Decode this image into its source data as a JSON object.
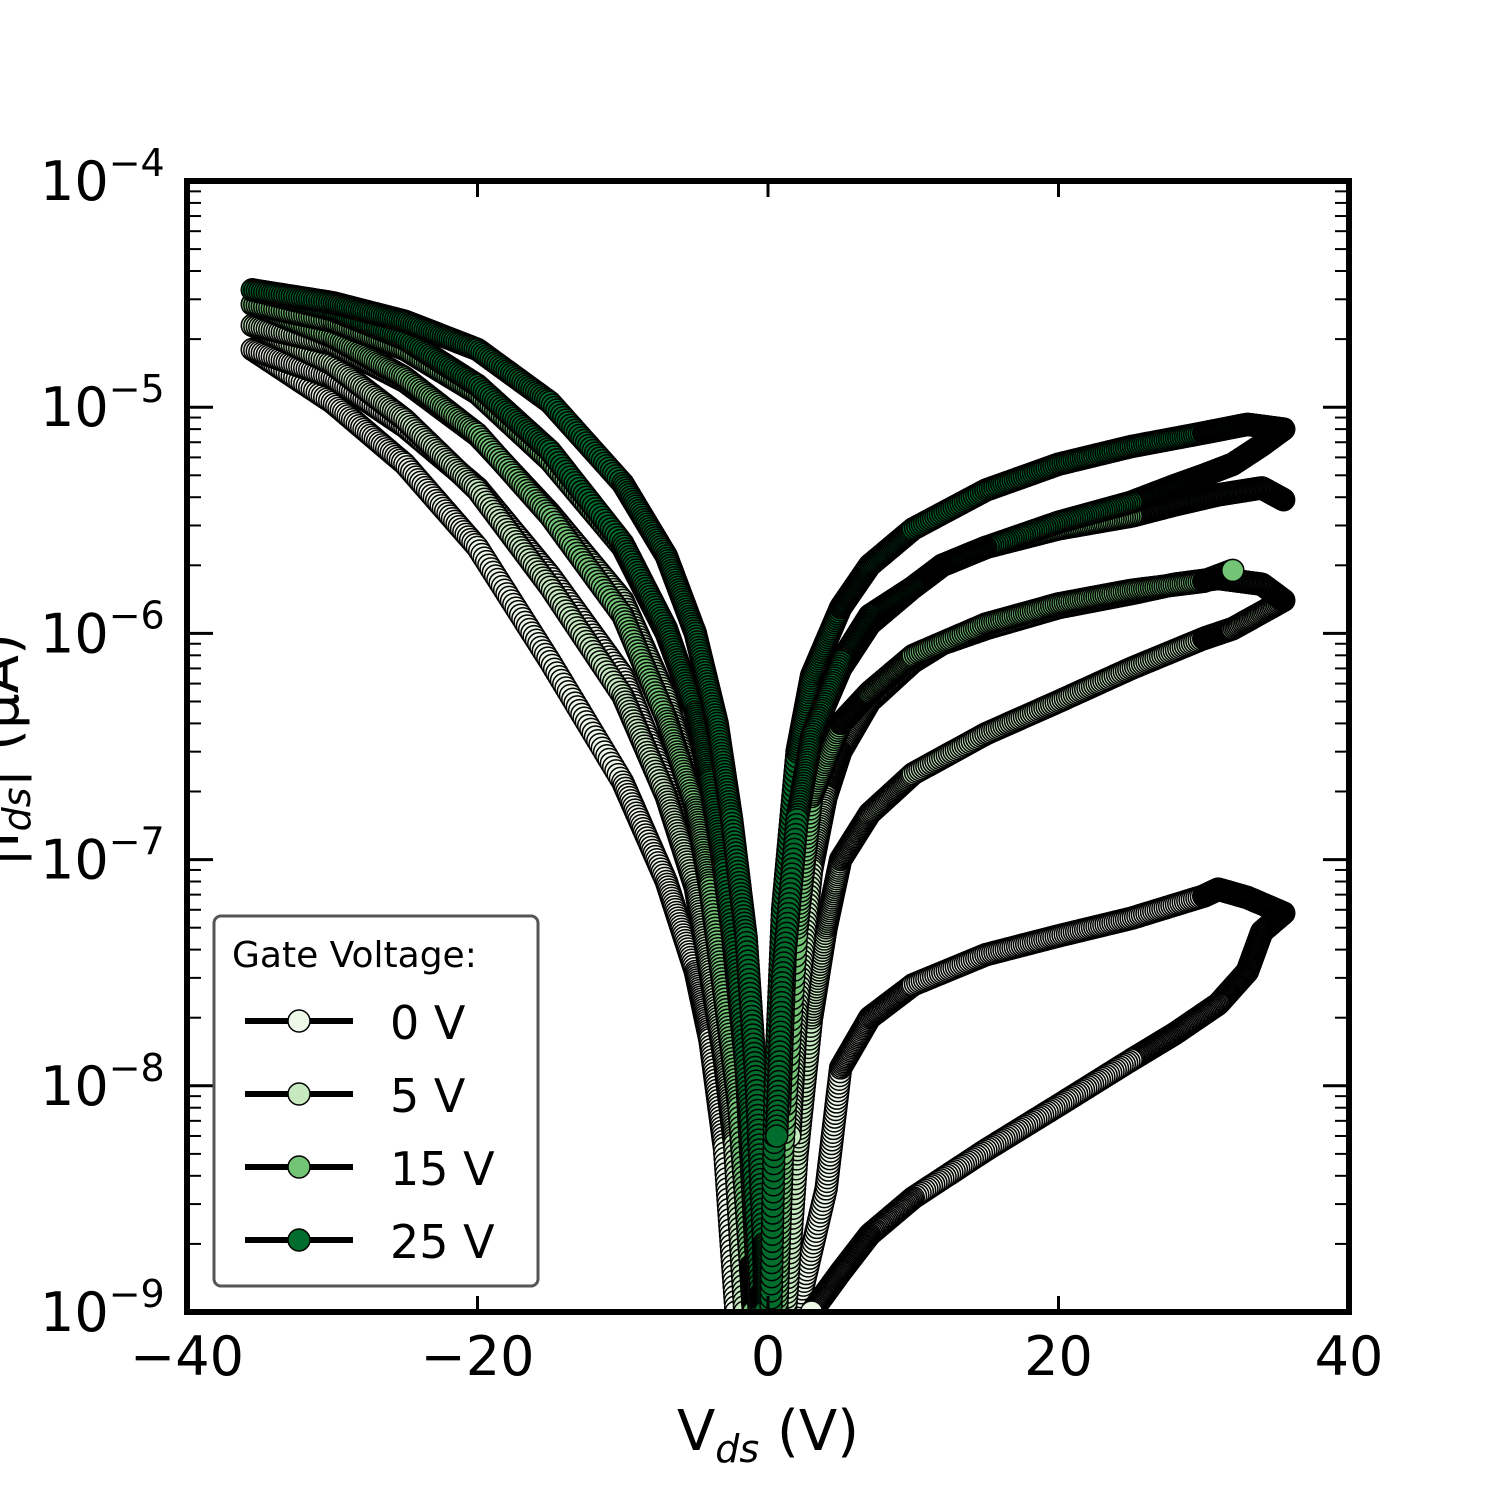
{
  "chart_data": {
    "type": "scatter",
    "xlabel": {
      "base": "V",
      "sub": "ds",
      "unit": " (V)"
    },
    "ylabel": "|Iₕₛ| (μA)",
    "ylabel_parts": {
      "base": "|I",
      "sub": "ds",
      "tail": "| (μA)"
    },
    "xlim": [
      -40,
      40
    ],
    "ylim": [
      1e-09,
      0.0001
    ],
    "yscale": "log",
    "x_ticks": [
      -40,
      -20,
      0,
      20,
      40
    ],
    "x_tick_labels": [
      "−40",
      "−20",
      "0",
      "20",
      "40"
    ],
    "y_tick_labels": [
      {
        "base": "10",
        "exp": "−9"
      },
      {
        "base": "10",
        "exp": "−8"
      },
      {
        "base": "10",
        "exp": "−7"
      },
      {
        "base": "10",
        "exp": "−6"
      },
      {
        "base": "10",
        "exp": "−5"
      },
      {
        "base": "10",
        "exp": "−4"
      }
    ],
    "legend": {
      "title": "Gate Voltage:",
      "placement": "lower-left",
      "entries": [
        "0 V",
        "5 V",
        "15 V",
        "25 V"
      ]
    },
    "series": [
      {
        "name": "0 V",
        "color": "#edf8e9",
        "neg_fwd": [
          [
            -35.5,
            1.8e-05
          ],
          [
            -30,
            1.05e-05
          ],
          [
            -25,
            5.6e-06
          ],
          [
            -20,
            2.4e-06
          ],
          [
            -15,
            7.5e-07
          ],
          [
            -10,
            2.2e-07
          ],
          [
            -7,
            8e-08
          ],
          [
            -5,
            3.2e-08
          ],
          [
            -4,
            1.6e-08
          ],
          [
            -3,
            5.3e-09
          ],
          [
            -2.2,
            1e-09
          ]
        ],
        "neg_ret": [
          [
            -35.5,
            1.8e-05
          ],
          [
            -30,
            1.35e-05
          ],
          [
            -25,
            8.2e-06
          ],
          [
            -20,
            4.4e-06
          ],
          [
            -15,
            1.8e-06
          ],
          [
            -10,
            6.5e-07
          ],
          [
            -7,
            2.2e-07
          ],
          [
            -5,
            8e-08
          ],
          [
            -3.5,
            2.5e-08
          ],
          [
            -2.5,
            8e-09
          ],
          [
            -1.5,
            1.5e-09
          ],
          [
            -1.2,
            1e-09
          ]
        ],
        "pos_top": [
          [
            2,
            1e-09
          ],
          [
            4,
            3.5e-09
          ],
          [
            5,
            1.2e-08
          ],
          [
            7,
            2e-08
          ],
          [
            10,
            2.8e-08
          ],
          [
            15,
            3.8e-08
          ],
          [
            20,
            4.6e-08
          ],
          [
            25,
            5.5e-08
          ],
          [
            30,
            6.9e-08
          ],
          [
            31,
            7.4e-08
          ],
          [
            33,
            6.8e-08
          ],
          [
            35.5,
            5.8e-08
          ]
        ],
        "pos_bot": [
          [
            35.5,
            5.8e-08
          ],
          [
            34,
            4.8e-08
          ],
          [
            33,
            3.2e-08
          ],
          [
            31,
            2.3e-08
          ],
          [
            28,
            1.7e-08
          ],
          [
            25,
            1.3e-08
          ],
          [
            20,
            8.2e-09
          ],
          [
            15,
            5.2e-09
          ],
          [
            10,
            3.2e-09
          ],
          [
            7,
            2.2e-09
          ],
          [
            5,
            1.5e-09
          ],
          [
            3,
            1e-09
          ]
        ]
      },
      {
        "name": "5 V",
        "color": "#c7e9c0",
        "neg_fwd": [
          [
            -35.5,
            2.3e-05
          ],
          [
            -30,
            1.55e-05
          ],
          [
            -25,
            8.8e-06
          ],
          [
            -20,
            4.3e-06
          ],
          [
            -15,
            1.6e-06
          ],
          [
            -10,
            5.3e-07
          ],
          [
            -7,
            1.9e-07
          ],
          [
            -5,
            7.5e-08
          ],
          [
            -4,
            3.2e-08
          ],
          [
            -3,
            1.3e-08
          ],
          [
            -2.3,
            5.5e-09
          ],
          [
            -1.6,
            1e-09
          ]
        ],
        "neg_ret": [
          [
            -35.5,
            2.3e-05
          ],
          [
            -30,
            1.9e-05
          ],
          [
            -25,
            1.3e-05
          ],
          [
            -20,
            7.5e-06
          ],
          [
            -15,
            3.4e-06
          ],
          [
            -10,
            1.4e-06
          ],
          [
            -7,
            5.2e-07
          ],
          [
            -5,
            1.9e-07
          ],
          [
            -3.5,
            6e-08
          ],
          [
            -2.5,
            2e-08
          ],
          [
            -1.5,
            4e-09
          ],
          [
            -1,
            1e-09
          ]
        ],
        "pos_top": [
          [
            1.2,
            1e-09
          ],
          [
            2,
            5e-09
          ],
          [
            3,
            2e-08
          ],
          [
            4,
            5e-08
          ],
          [
            5,
            1e-07
          ],
          [
            7,
            1.6e-07
          ],
          [
            10,
            2.4e-07
          ],
          [
            15,
            3.6e-07
          ],
          [
            20,
            5e-07
          ],
          [
            25,
            7e-07
          ],
          [
            30,
            9.5e-07
          ],
          [
            32,
            1.05e-06
          ],
          [
            35.5,
            1.4e-06
          ]
        ],
        "pos_bot": [
          [
            35.5,
            1.4e-06
          ],
          [
            34,
            1.65e-06
          ],
          [
            31,
            1.75e-06
          ],
          [
            28,
            1.65e-06
          ],
          [
            25,
            1.5e-06
          ],
          [
            20,
            1.3e-06
          ],
          [
            15,
            1.05e-06
          ],
          [
            12,
            9e-07
          ],
          [
            10,
            7.5e-07
          ],
          [
            7,
            5e-07
          ],
          [
            5,
            3e-07
          ],
          [
            4,
            1.9e-07
          ],
          [
            3,
            9e-08
          ],
          [
            2,
            2.2e-08
          ],
          [
            1.5,
            6e-09
          ]
        ]
      },
      {
        "name": "15 V",
        "color": "#74c476",
        "neg_fwd": [
          [
            -35.5,
            2.85e-05
          ],
          [
            -30,
            2.05e-05
          ],
          [
            -25,
            1.35e-05
          ],
          [
            -20,
            7.6e-06
          ],
          [
            -15,
            3.3e-06
          ],
          [
            -10,
            1.2e-06
          ],
          [
            -7,
            4.2e-07
          ],
          [
            -5,
            1.7e-07
          ],
          [
            -4,
            7.5e-08
          ],
          [
            -3,
            2.5e-08
          ],
          [
            -2,
            8e-09
          ],
          [
            -1.2,
            1.6e-09
          ],
          [
            -1,
            1e-09
          ]
        ],
        "neg_ret": [
          [
            -35.5,
            2.85e-05
          ],
          [
            -30,
            2.4e-05
          ],
          [
            -25,
            1.8e-05
          ],
          [
            -20,
            1.15e-05
          ],
          [
            -15,
            5.8e-06
          ],
          [
            -10,
            2.4e-06
          ],
          [
            -7,
            1e-06
          ],
          [
            -5,
            4.5e-07
          ],
          [
            -3.5,
            1.5e-07
          ],
          [
            -2.5,
            5e-08
          ],
          [
            -1.5,
            1.2e-08
          ],
          [
            -1,
            3e-09
          ],
          [
            -0.6,
            1e-09
          ]
        ],
        "pos_top": [
          [
            0.6,
            1e-09
          ],
          [
            1,
            5e-09
          ],
          [
            2,
            5e-08
          ],
          [
            3,
            1.9e-07
          ],
          [
            5,
            4e-07
          ],
          [
            7,
            5.5e-07
          ],
          [
            10,
            8e-07
          ],
          [
            15,
            1.1e-06
          ],
          [
            20,
            1.35e-06
          ],
          [
            25,
            1.55e-06
          ],
          [
            30,
            1.7e-06
          ],
          [
            32,
            1.9e-06
          ]
        ],
        "pos_bot": [
          [
            35.5,
            3.9e-06
          ],
          [
            34,
            4.4e-06
          ],
          [
            31,
            4.1e-06
          ],
          [
            28,
            3.7e-06
          ],
          [
            25,
            3.3e-06
          ],
          [
            20,
            2.9e-06
          ],
          [
            15,
            2.4e-06
          ],
          [
            12,
            2e-06
          ],
          [
            10,
            1.6e-06
          ],
          [
            7,
            1.1e-06
          ],
          [
            5,
            7e-07
          ],
          [
            3,
            3.5e-07
          ],
          [
            2,
            1.5e-07
          ],
          [
            1.2,
            4e-08
          ],
          [
            0.8,
            8e-09
          ]
        ]
      },
      {
        "name": "25 V",
        "color": "#006d2c",
        "neg_fwd": [
          [
            -35.5,
            3.3e-05
          ],
          [
            -30,
            2.7e-05
          ],
          [
            -25,
            2e-05
          ],
          [
            -20,
            1.25e-05
          ],
          [
            -15,
            6.4e-06
          ],
          [
            -10,
            2.5e-06
          ],
          [
            -7,
            1.05e-06
          ],
          [
            -5,
            4.5e-07
          ],
          [
            -4,
            2.2e-07
          ],
          [
            -3,
            9e-08
          ],
          [
            -2,
            2.8e-08
          ],
          [
            -1.2,
            7e-09
          ],
          [
            -0.5,
            1.2e-09
          ],
          [
            -0.4,
            1e-09
          ]
        ],
        "neg_ret": [
          [
            -35.5,
            3.3e-05
          ],
          [
            -30,
            2.9e-05
          ],
          [
            -25,
            2.4e-05
          ],
          [
            -20,
            1.8e-05
          ],
          [
            -15,
            1.05e-05
          ],
          [
            -10,
            4.6e-06
          ],
          [
            -7,
            2.2e-06
          ],
          [
            -5,
            1e-06
          ],
          [
            -3.5,
            4e-07
          ],
          [
            -2.5,
            1.5e-07
          ],
          [
            -1.5,
            4.5e-08
          ],
          [
            -0.8,
            1e-08
          ],
          [
            -0.3,
            2e-09
          ],
          [
            -0.2,
            1e-09
          ]
        ],
        "pos_top": [
          [
            0.2,
            1e-09
          ],
          [
            0.5,
            1e-08
          ],
          [
            1,
            6e-08
          ],
          [
            2,
            3e-07
          ],
          [
            3,
            6.5e-07
          ],
          [
            5,
            1.3e-06
          ],
          [
            7,
            2e-06
          ],
          [
            10,
            2.9e-06
          ],
          [
            15,
            4.3e-06
          ],
          [
            20,
            5.6e-06
          ],
          [
            25,
            6.7e-06
          ],
          [
            30,
            7.7e-06
          ],
          [
            33,
            8.4e-06
          ],
          [
            35.5,
            8e-06
          ]
        ],
        "pos_bot": [
          [
            35.5,
            8e-06
          ],
          [
            34,
            6.8e-06
          ],
          [
            32,
            5.6e-06
          ],
          [
            30,
            5e-06
          ],
          [
            28,
            4.5e-06
          ],
          [
            25,
            3.8e-06
          ],
          [
            20,
            3.1e-06
          ],
          [
            15,
            2.4e-06
          ],
          [
            12,
            2e-06
          ],
          [
            10,
            1.6e-06
          ],
          [
            7,
            1.2e-06
          ],
          [
            5,
            7.5e-07
          ],
          [
            3,
            3.5e-07
          ],
          [
            2,
            1.5e-07
          ],
          [
            1,
            3e-08
          ],
          [
            0.6,
            6e-09
          ]
        ]
      }
    ]
  }
}
